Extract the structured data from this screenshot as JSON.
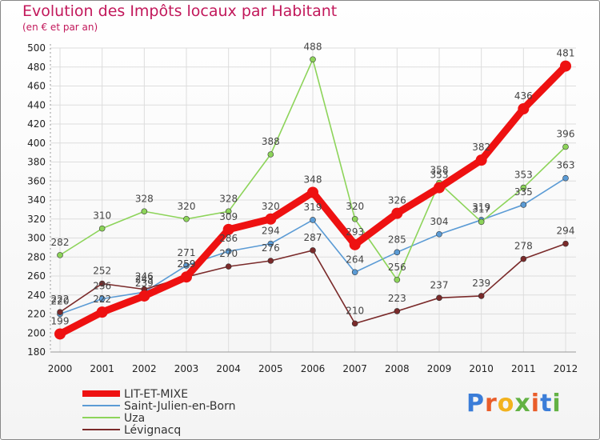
{
  "title": "Evolution des Impôts locaux par Habitant",
  "subtitle": "(en € et par an)",
  "logo": "Proxiti",
  "chart_data": {
    "type": "line",
    "title": "Evolution des Impôts locaux par Habitant",
    "ylabel": "(en € et par an)",
    "xlabel": "",
    "ylim": [
      180,
      500
    ],
    "yticks": [
      180,
      200,
      220,
      240,
      260,
      280,
      300,
      320,
      340,
      360,
      380,
      400,
      420,
      440,
      460,
      480,
      500
    ],
    "categories": [
      "2000",
      "2001",
      "2002",
      "2003",
      "2004",
      "2005",
      "2006",
      "2007",
      "2008",
      "2009",
      "2010",
      "2011",
      "2012"
    ],
    "grid": true,
    "legend": "bottom-left",
    "series": [
      {
        "name": "Saint-Julien-en-Born",
        "color": "#5b9bd5",
        "values": [
          220,
          236,
          243,
          271,
          286,
          294,
          319,
          264,
          285,
          304,
          319,
          335,
          363
        ]
      },
      {
        "name": "Uza",
        "color": "#8dd45a",
        "values": [
          282,
          310,
          328,
          320,
          328,
          388,
          488,
          320,
          256,
          358,
          317,
          353,
          396
        ]
      },
      {
        "name": "Lévignacq",
        "color": "#7a2a2a",
        "values": [
          222,
          252,
          246,
          259,
          270,
          276,
          287,
          210,
          223,
          237,
          239,
          278,
          294
        ]
      },
      {
        "name": "LIT-ET-MIXE",
        "color": "#ee1111",
        "values": [
          199,
          222,
          239,
          259,
          309,
          320,
          348,
          293,
          326,
          353,
          382,
          436,
          481
        ]
      }
    ],
    "legend_order": [
      "LIT-ET-MIXE",
      "Saint-Julien-en-Born",
      "Uza",
      "Lévignacq"
    ]
  }
}
